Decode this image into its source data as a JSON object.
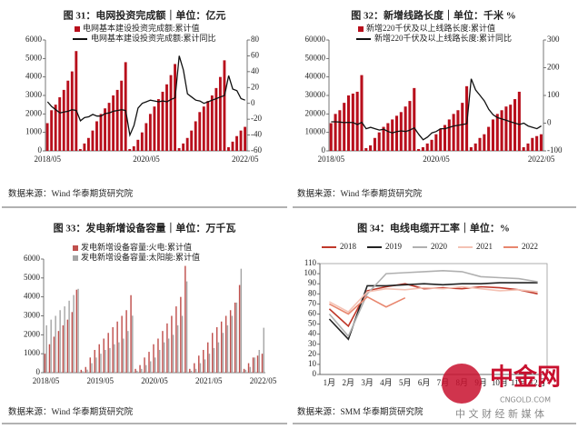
{
  "chart_data": [
    {
      "type": "combo",
      "title": "图 31：电网投资完成额｜单位：亿元",
      "source": "数据来源：Wind 华泰期货研究院",
      "categories": [
        "2018/05",
        null,
        null,
        null,
        null,
        null,
        null,
        null,
        null,
        null,
        null,
        null,
        null,
        null,
        null,
        null,
        null,
        null,
        null,
        null,
        null,
        null,
        null,
        null,
        "2020/05",
        null,
        null,
        null,
        null,
        null,
        null,
        null,
        null,
        null,
        null,
        null,
        null,
        null,
        null,
        null,
        null,
        null,
        null,
        null,
        null,
        null,
        null,
        null,
        "2022/05"
      ],
      "ylim": [
        0,
        6000
      ],
      "yticks": [
        0,
        1000,
        2000,
        3000,
        4000,
        5000,
        6000
      ],
      "y2lim": [
        -60,
        80
      ],
      "y2ticks": [
        -60,
        -40,
        -20,
        0,
        20,
        40,
        60,
        80
      ],
      "series": [
        {
          "name": "电网基本建设投资完成额:累计值",
          "color": "#b80f1c",
          "values": [
            1500,
            2200,
            2500,
            2900,
            3300,
            3800,
            4300,
            5400,
            100,
            400,
            700,
            1100,
            1600,
            2000,
            2300,
            2600,
            3000,
            3300,
            3800,
            4800,
            100,
            250,
            600,
            1000,
            1500,
            2000,
            2400,
            2800,
            3200,
            3600,
            4100,
            4700,
            150,
            400,
            700,
            1100,
            1600,
            2100,
            2400,
            2700,
            3000,
            3400,
            4000,
            4900,
            200,
            500,
            800,
            1100,
            1300
          ]
        },
        {
          "name": "电网基本建设投资完成额:累计同比",
          "color": "#111111",
          "axis": "y2",
          "values": [
            2,
            -4,
            -8,
            -12,
            -11,
            -10,
            -8,
            -9,
            -22,
            -18,
            -17,
            -14,
            -16,
            -16,
            -13,
            -12,
            -10,
            -9,
            -8,
            -9,
            -40,
            -28,
            -6,
            0,
            2,
            4,
            3,
            2,
            3,
            2,
            5,
            7,
            60,
            42,
            12,
            8,
            4,
            3,
            0,
            2,
            4,
            6,
            8,
            10,
            35,
            18,
            16,
            6,
            4
          ]
        }
      ]
    },
    {
      "type": "combo",
      "title": "图 32：新增线路长度｜单位：千米 %",
      "source": "数据来源：Wind 华泰期货研究院",
      "categories": [
        "2018/05",
        null,
        null,
        null,
        null,
        null,
        null,
        null,
        null,
        null,
        null,
        null,
        null,
        null,
        null,
        null,
        null,
        null,
        null,
        null,
        null,
        null,
        null,
        null,
        "2020/05",
        null,
        null,
        null,
        null,
        null,
        null,
        null,
        null,
        null,
        null,
        null,
        null,
        null,
        null,
        null,
        null,
        null,
        null,
        null,
        null,
        null,
        null,
        null,
        "2022/05"
      ],
      "ylim": [
        0,
        60000
      ],
      "yticks": [
        0,
        10000,
        20000,
        30000,
        40000,
        50000,
        60000
      ],
      "y2lim": [
        -100,
        300
      ],
      "y2ticks": [
        -100,
        0,
        100,
        200,
        300
      ],
      "series": [
        {
          "name": "新增220千伏及以上线路长度:累计值",
          "color": "#b80f1c",
          "values": [
            15000,
            20000,
            22000,
            26000,
            30000,
            31000,
            32000,
            41000,
            1500,
            3000,
            7000,
            10000,
            13000,
            15000,
            17000,
            19000,
            21000,
            24000,
            27000,
            34000,
            1000,
            2000,
            4000,
            6000,
            9000,
            12000,
            14000,
            17000,
            20000,
            22000,
            26000,
            35000,
            2000,
            4000,
            7000,
            9000,
            13000,
            17000,
            20000,
            22000,
            24000,
            25000,
            28000,
            32000,
            2000,
            4000,
            7000,
            8000,
            9000
          ]
        },
        {
          "name": "新增220千伏及以上线路长度:累计同比",
          "color": "#111111",
          "axis": "y2",
          "values": [
            5,
            5,
            4,
            2,
            3,
            2,
            -5,
            3,
            -20,
            -15,
            -20,
            -25,
            -22,
            -30,
            -35,
            -30,
            -28,
            -30,
            -25,
            -17,
            -40,
            -60,
            -50,
            -35,
            -30,
            -20,
            -20,
            -15,
            -10,
            -8,
            -5,
            -2,
            160,
            120,
            100,
            80,
            50,
            30,
            20,
            15,
            10,
            5,
            0,
            -5,
            0,
            -10,
            -15,
            -20,
            -10
          ]
        }
      ]
    },
    {
      "type": "bar",
      "title": "图 33：发电新增设备容量｜单位：万千瓦",
      "source": "数据来源：Wind 华泰期货研究院",
      "categories": [
        "2018/05",
        null,
        null,
        null,
        null,
        null,
        null,
        null,
        null,
        null,
        null,
        null,
        "2019/05",
        null,
        null,
        null,
        null,
        null,
        null,
        null,
        null,
        null,
        null,
        null,
        "2020/05",
        null,
        null,
        null,
        null,
        null,
        null,
        null,
        null,
        null,
        null,
        null,
        "2021/05",
        null,
        null,
        null,
        null,
        null,
        null,
        null,
        null,
        null,
        null,
        null,
        "2022/05"
      ],
      "ylim": [
        0,
        6000
      ],
      "yticks": [
        0,
        1000,
        2000,
        3000,
        4000,
        5000,
        6000
      ],
      "series": [
        {
          "name": "发电新增设备容量:火电:累计值",
          "color": "#c0504d",
          "values": [
            1000,
            1500,
            1900,
            2200,
            2500,
            2800,
            3200,
            4380,
            150,
            300,
            800,
            1200,
            1500,
            1800,
            2100,
            2400,
            2700,
            3000,
            3300,
            4092,
            200,
            400,
            800,
            1100,
            1500,
            1800,
            2200,
            2600,
            3000,
            3500,
            4000,
            5637,
            200,
            500,
            900,
            1200,
            1600,
            2100,
            2400,
            2700,
            3000,
            3300,
            3700,
            4628,
            200,
            500,
            800,
            900,
            1000
          ]
        },
        {
          "name": "发电新增设备容量:太阳能:累计值",
          "color": "#a6a6a6",
          "values": [
            2500,
            2800,
            3000,
            3300,
            3500,
            3800,
            4100,
            4426,
            80,
            160,
            500,
            800,
            1000,
            1200,
            1300,
            1500,
            1600,
            1800,
            2200,
            3011,
            100,
            200,
            400,
            600,
            800,
            1200,
            1600,
            1800,
            2000,
            2500,
            3000,
            4820,
            100,
            200,
            500,
            700,
            1000,
            1300,
            1600,
            2100,
            2500,
            3000,
            3700,
            5488,
            150,
            300,
            800,
            1200,
            2371
          ]
        }
      ]
    },
    {
      "type": "line",
      "title": "图 34：电线电缆开工率｜单位：%",
      "source": "数据来源：SMM 华泰期货研究院",
      "categories": [
        "1月",
        "2月",
        "3月",
        "4月",
        "5月",
        "6月",
        "7月",
        "8月",
        "9月",
        "10月",
        "11月",
        "12月"
      ],
      "ylim": [
        0,
        110
      ],
      "yticks": [
        0,
        10,
        20,
        30,
        40,
        50,
        60,
        70,
        80,
        90,
        100,
        110
      ],
      "series": [
        {
          "name": "2018",
          "color": "#c0392b",
          "values": [
            65,
            48,
            83,
            87,
            90,
            85,
            86,
            85,
            87,
            86,
            84,
            80
          ]
        },
        {
          "name": "2019",
          "color": "#222222",
          "values": [
            55,
            35,
            88,
            88,
            89,
            90,
            89,
            90,
            90,
            91,
            91,
            91
          ]
        },
        {
          "name": "2020",
          "color": "#b0b0b0",
          "values": [
            60,
            38,
            80,
            100,
            101,
            102,
            103,
            102,
            97,
            96,
            95,
            92
          ]
        },
        {
          "name": "2021",
          "color": "#f4c2b4",
          "values": [
            72,
            62,
            82,
            85,
            84,
            86,
            85,
            87,
            85,
            83,
            84,
            82
          ]
        },
        {
          "name": "2022",
          "color": "#e8866e",
          "values": [
            70,
            60,
            77,
            67,
            76,
            null,
            null,
            null,
            null,
            null,
            null,
            null
          ]
        }
      ]
    }
  ],
  "watermark": {
    "name": "中金网",
    "site": "CNGOLD.COM",
    "slogan": "中 文 财 经 新 媒 体"
  }
}
